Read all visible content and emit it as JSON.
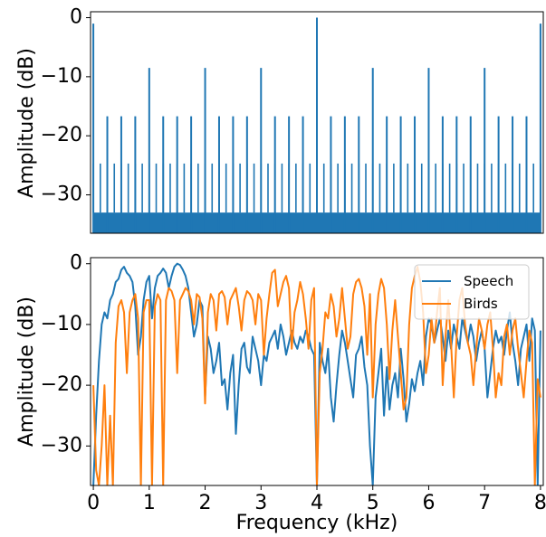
{
  "chart_data": [
    {
      "type": "line",
      "id": "top",
      "xlim": [
        -0.05,
        8.05
      ],
      "ylim": [
        -36.5,
        1
      ],
      "ylabel": "Amplitude (dB)",
      "yticks": [
        0,
        -10,
        -20,
        -30
      ],
      "ytick_labels": [
        "0",
        "−10",
        "−20",
        "−30"
      ],
      "grid": false,
      "legend": null,
      "series": [
        {
          "color": "#1f77b4",
          "comb_floor_db": -33,
          "comb_spacing_khz": 0.03125,
          "minor_peak_db": -24.7,
          "minor_peak_spacing_khz": 0.125,
          "peaks_khz": [
            0,
            0.25,
            0.5,
            0.75,
            1,
            1.25,
            1.5,
            1.75,
            2,
            2.25,
            2.5,
            2.75,
            3,
            3.25,
            3.5,
            3.75,
            4,
            4.25,
            4.5,
            4.75,
            5,
            5.25,
            5.5,
            5.75,
            6,
            6.25,
            6.5,
            6.75,
            7,
            7.25,
            7.5,
            7.75,
            8
          ],
          "peaks_db": [
            -1,
            -16.7,
            -16.7,
            -16.7,
            -8.5,
            -16.7,
            -16.7,
            -16.7,
            -8.5,
            -16.7,
            -16.7,
            -16.7,
            -8.5,
            -16.7,
            -16.7,
            -16.7,
            0,
            -16.7,
            -16.7,
            -16.7,
            -8.5,
            -16.7,
            -16.7,
            -16.7,
            -8.5,
            -16.7,
            -16.7,
            -16.7,
            -8.5,
            -16.7,
            -16.7,
            -16.7,
            -1
          ]
        }
      ]
    },
    {
      "type": "line",
      "id": "bottom",
      "xlim": [
        -0.05,
        8.05
      ],
      "ylim": [
        -36.5,
        1
      ],
      "xlabel": "Frequency (kHz)",
      "ylabel": "Amplitude (dB)",
      "xticks": [
        0,
        1,
        2,
        3,
        4,
        5,
        6,
        7,
        8
      ],
      "xtick_labels": [
        "0",
        "1",
        "2",
        "3",
        "4",
        "5",
        "6",
        "7",
        "8"
      ],
      "yticks": [
        0,
        -10,
        -20,
        -30
      ],
      "ytick_labels": [
        "0",
        "−10",
        "−20",
        "−30"
      ],
      "grid": false,
      "legend": "upper right",
      "series": [
        {
          "name": "Speech",
          "color": "#1f77b4",
          "x": [
            0.0,
            0.05,
            0.1,
            0.15,
            0.2,
            0.25,
            0.3,
            0.35,
            0.4,
            0.45,
            0.5,
            0.55,
            0.6,
            0.65,
            0.7,
            0.75,
            0.8,
            0.85,
            0.9,
            0.95,
            1.0,
            1.05,
            1.1,
            1.15,
            1.2,
            1.25,
            1.3,
            1.35,
            1.4,
            1.45,
            1.5,
            1.55,
            1.6,
            1.65,
            1.7,
            1.75,
            1.8,
            1.85,
            1.9,
            1.95,
            2.0,
            2.05,
            2.1,
            2.15,
            2.2,
            2.25,
            2.3,
            2.35,
            2.4,
            2.45,
            2.5,
            2.55,
            2.6,
            2.65,
            2.7,
            2.75,
            2.8,
            2.85,
            2.9,
            2.95,
            3.0,
            3.05,
            3.1,
            3.15,
            3.2,
            3.25,
            3.3,
            3.35,
            3.4,
            3.45,
            3.5,
            3.55,
            3.6,
            3.65,
            3.7,
            3.75,
            3.8,
            3.85,
            3.9,
            3.95,
            4.0,
            4.05,
            4.1,
            4.15,
            4.2,
            4.25,
            4.3,
            4.35,
            4.4,
            4.45,
            4.5,
            4.55,
            4.6,
            4.65,
            4.7,
            4.75,
            4.8,
            4.85,
            4.9,
            4.95,
            5.0,
            5.05,
            5.1,
            5.15,
            5.2,
            5.25,
            5.3,
            5.35,
            5.4,
            5.45,
            5.5,
            5.55,
            5.6,
            5.65,
            5.7,
            5.75,
            5.8,
            5.85,
            5.9,
            5.95,
            6.0,
            6.05,
            6.1,
            6.15,
            6.2,
            6.25,
            6.3,
            6.35,
            6.4,
            6.45,
            6.5,
            6.55,
            6.6,
            6.65,
            6.7,
            6.75,
            6.8,
            6.85,
            6.9,
            6.95,
            7.0,
            7.05,
            7.1,
            7.15,
            7.2,
            7.25,
            7.3,
            7.35,
            7.4,
            7.45,
            7.5,
            7.55,
            7.6,
            7.65,
            7.7,
            7.75,
            7.8,
            7.85,
            7.9,
            7.95,
            8.0
          ],
          "y": [
            -36.5,
            -25,
            -16,
            -10,
            -8,
            -9,
            -6,
            -5,
            -3,
            -2.5,
            -1,
            -0.5,
            -1.5,
            -2,
            -3,
            -7,
            -15,
            -12,
            -6,
            -3,
            -2,
            -9,
            -4,
            -2,
            -1.5,
            -0.8,
            -1.5,
            -4,
            -2,
            -0.5,
            0,
            -0.2,
            -1,
            -2,
            -4,
            -8,
            -12,
            -10,
            -6,
            -7,
            -22,
            -12,
            -14,
            -18,
            -16,
            -13,
            -20,
            -19,
            -24,
            -18,
            -15,
            -28,
            -20,
            -14,
            -13,
            -17,
            -18,
            -12,
            -14,
            -16,
            -20,
            -15,
            -16,
            -13,
            -12,
            -11,
            -14,
            -10,
            -12,
            -15,
            -13,
            -11,
            -13,
            -14,
            -12,
            -13,
            -11,
            -12,
            -14,
            -15,
            -36.5,
            -13,
            -16,
            -18,
            -14,
            -22,
            -26,
            -20,
            -15,
            -11,
            -13,
            -16,
            -19,
            -22,
            -15,
            -14,
            -12,
            -17,
            -20,
            -30,
            -36.5,
            -22,
            -18,
            -14,
            -25,
            -17,
            -24,
            -20,
            -18,
            -22,
            -14,
            -19,
            -26,
            -23,
            -19,
            -21,
            -18,
            -16,
            -20,
            -12,
            -9,
            -10,
            -13,
            -11,
            -9,
            -12,
            -16,
            -11,
            -14,
            -10,
            -12,
            -14,
            -9,
            -11,
            -13,
            -10,
            -12,
            -16,
            -13,
            -11,
            -14,
            -22,
            -18,
            -14,
            -11,
            -13,
            -12,
            -15,
            -11,
            -8,
            -13,
            -16,
            -20,
            -14,
            -12,
            -10,
            -16,
            -9,
            -11,
            -36.5,
            -11
          ]
        },
        {
          "name": "Birds",
          "color": "#ff7f0e",
          "x": [
            0.0,
            0.05,
            0.1,
            0.15,
            0.2,
            0.25,
            0.3,
            0.35,
            0.4,
            0.45,
            0.5,
            0.55,
            0.6,
            0.65,
            0.7,
            0.75,
            0.8,
            0.85,
            0.9,
            0.95,
            1.0,
            1.05,
            1.1,
            1.15,
            1.2,
            1.25,
            1.3,
            1.35,
            1.4,
            1.45,
            1.5,
            1.55,
            1.6,
            1.65,
            1.7,
            1.75,
            1.8,
            1.85,
            1.9,
            1.95,
            2.0,
            2.05,
            2.1,
            2.15,
            2.2,
            2.25,
            2.3,
            2.35,
            2.4,
            2.45,
            2.5,
            2.55,
            2.6,
            2.65,
            2.7,
            2.75,
            2.8,
            2.85,
            2.9,
            2.95,
            3.0,
            3.05,
            3.1,
            3.15,
            3.2,
            3.25,
            3.3,
            3.35,
            3.4,
            3.45,
            3.5,
            3.55,
            3.6,
            3.65,
            3.7,
            3.75,
            3.8,
            3.85,
            3.9,
            3.95,
            4.0,
            4.05,
            4.1,
            4.15,
            4.2,
            4.25,
            4.3,
            4.35,
            4.4,
            4.45,
            4.5,
            4.55,
            4.6,
            4.65,
            4.7,
            4.75,
            4.8,
            4.85,
            4.9,
            4.95,
            5.0,
            5.05,
            5.1,
            5.15,
            5.2,
            5.25,
            5.3,
            5.35,
            5.4,
            5.45,
            5.5,
            5.55,
            5.6,
            5.65,
            5.7,
            5.75,
            5.8,
            5.85,
            5.9,
            5.95,
            6.0,
            6.05,
            6.1,
            6.15,
            6.2,
            6.25,
            6.3,
            6.35,
            6.4,
            6.45,
            6.5,
            6.55,
            6.6,
            6.65,
            6.7,
            6.75,
            6.8,
            6.85,
            6.9,
            6.95,
            7.0,
            7.05,
            7.1,
            7.15,
            7.2,
            7.25,
            7.3,
            7.35,
            7.4,
            7.45,
            7.5,
            7.55,
            7.6,
            7.65,
            7.7,
            7.75,
            7.8,
            7.85,
            7.9,
            7.95,
            8.0
          ],
          "y": [
            -20,
            -34,
            -36.5,
            -30,
            -20,
            -36.5,
            -25,
            -36.5,
            -13,
            -7,
            -6,
            -8,
            -18,
            -8,
            -6,
            -5,
            -9,
            -36.5,
            -8,
            -6,
            -6,
            -36.5,
            -7,
            -5,
            -6,
            -36.5,
            -6,
            -4,
            -4.5,
            -6,
            -18,
            -6,
            -5,
            -4,
            -4.5,
            -6,
            -10,
            -5,
            -5.5,
            -9,
            -23,
            -8,
            -5,
            -6,
            -11,
            -5,
            -4.5,
            -5.5,
            -10,
            -6,
            -5,
            -4,
            -7,
            -11,
            -6,
            -4.5,
            -5,
            -6,
            -10,
            -5,
            -6,
            -15,
            -9,
            -5,
            -1.5,
            -1,
            -7,
            -5,
            -3,
            -2,
            -4,
            -14,
            -8,
            -6,
            -3,
            -5,
            -9,
            -14,
            -6,
            -4,
            -36.5,
            -18,
            -14,
            -8,
            -9,
            -5,
            -7,
            -12,
            -9,
            -4,
            -9,
            -14,
            -12,
            -5,
            -3,
            -2.5,
            -4,
            -7,
            -15,
            -5,
            -22,
            -10,
            -5,
            -2.5,
            -4,
            -10,
            -19,
            -11,
            -6,
            -12,
            -18,
            -24,
            -22,
            -10,
            -4,
            -2,
            -0.5,
            -3,
            -8,
            -18,
            -15,
            -9,
            -13,
            -8,
            -4,
            -20,
            -12,
            -6,
            -13,
            -22,
            -12,
            -6,
            -4,
            -10,
            -13,
            -15,
            -20,
            -14,
            -9,
            -11,
            -14,
            -10,
            -8,
            -14,
            -22,
            -18,
            -20,
            -12,
            -10,
            -15,
            -11,
            -9,
            -14,
            -18,
            -22,
            -16,
            -11,
            -13,
            -36.5,
            -19,
            -22
          ]
        }
      ]
    }
  ]
}
